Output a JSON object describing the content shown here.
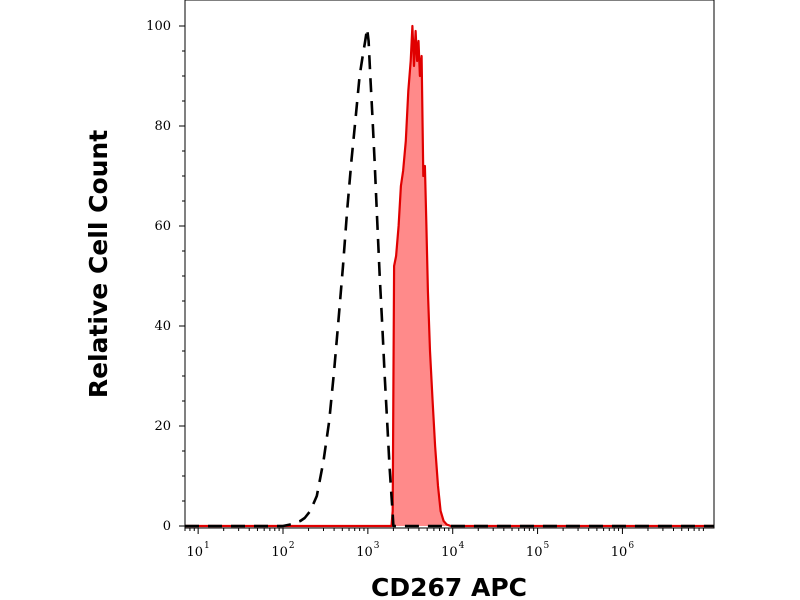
{
  "chart_data": {
    "type": "area",
    "title": "",
    "xlabel": "CD267 APC",
    "ylabel": "Relative Cell Count",
    "x_scale": "log",
    "xlim": [
      7,
      12000000
    ],
    "ylim": [
      0,
      100
    ],
    "x_ticks": [
      {
        "value": 10,
        "base": "10",
        "exp": "1"
      },
      {
        "value": 100,
        "base": "10",
        "exp": "2"
      },
      {
        "value": 1000,
        "base": "10",
        "exp": "3"
      },
      {
        "value": 10000,
        "base": "10",
        "exp": "4"
      },
      {
        "value": 100000,
        "base": "10",
        "exp": "5"
      },
      {
        "value": 1000000,
        "base": "10",
        "exp": "6"
      }
    ],
    "y_ticks": [
      {
        "value": 0,
        "label": "0"
      },
      {
        "value": 20,
        "label": "20"
      },
      {
        "value": 40,
        "label": "40"
      },
      {
        "value": 60,
        "label": "60"
      },
      {
        "value": 80,
        "label": "80"
      },
      {
        "value": 100,
        "label": "100"
      }
    ],
    "grid": false,
    "legend": "none",
    "series": [
      {
        "style": "dashed",
        "color": "#000000",
        "fill": "none",
        "points": [
          [
            7,
            0
          ],
          [
            100,
            0
          ],
          [
            130,
            0.4
          ],
          [
            145,
            0.8
          ],
          [
            160,
            1.0
          ],
          [
            180,
            1.6
          ],
          [
            210,
            3
          ],
          [
            250,
            6
          ],
          [
            300,
            13
          ],
          [
            350,
            21
          ],
          [
            400,
            31
          ],
          [
            450,
            41
          ],
          [
            510,
            52
          ],
          [
            570,
            63
          ],
          [
            640,
            73
          ],
          [
            720,
            82
          ],
          [
            800,
            90
          ],
          [
            870,
            94
          ],
          [
            930,
            97
          ],
          [
            980,
            99.5
          ],
          [
            1020,
            97
          ],
          [
            1070,
            90
          ],
          [
            1130,
            82
          ],
          [
            1200,
            73
          ],
          [
            1280,
            62
          ],
          [
            1380,
            50
          ],
          [
            1480,
            40
          ],
          [
            1580,
            30
          ],
          [
            1700,
            20
          ],
          [
            1800,
            12
          ],
          [
            1900,
            6
          ],
          [
            1950,
            3
          ],
          [
            2000,
            0
          ],
          [
            12000000,
            0
          ]
        ]
      },
      {
        "style": "solid",
        "color": "#e00000",
        "fill": "#ff8a8a",
        "points": [
          [
            7,
            0
          ],
          [
            1900,
            0
          ],
          [
            1960,
            3
          ],
          [
            2000,
            28
          ],
          [
            2040,
            52
          ],
          [
            2150,
            54
          ],
          [
            2300,
            60
          ],
          [
            2450,
            68
          ],
          [
            2600,
            71
          ],
          [
            2800,
            77
          ],
          [
            3000,
            87
          ],
          [
            3200,
            93
          ],
          [
            3350,
            100
          ],
          [
            3500,
            92
          ],
          [
            3650,
            99
          ],
          [
            3800,
            93
          ],
          [
            3950,
            97
          ],
          [
            4100,
            90
          ],
          [
            4300,
            94
          ],
          [
            4500,
            70
          ],
          [
            4700,
            72
          ],
          [
            4900,
            60
          ],
          [
            5100,
            47
          ],
          [
            5400,
            35
          ],
          [
            5800,
            25
          ],
          [
            6200,
            16
          ],
          [
            6700,
            8
          ],
          [
            7200,
            3
          ],
          [
            7800,
            1
          ],
          [
            8500,
            0.3
          ],
          [
            9500,
            0
          ],
          [
            12000000,
            0
          ]
        ]
      }
    ]
  }
}
